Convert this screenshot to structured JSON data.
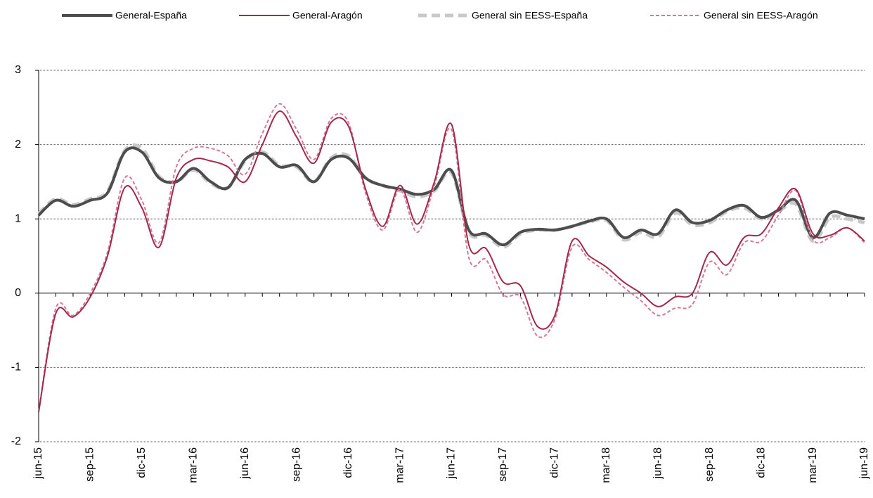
{
  "chart_data": {
    "type": "line",
    "categories": [
      "jun-15",
      null,
      null,
      "sep-15",
      null,
      null,
      "dic-15",
      null,
      null,
      "mar-16",
      null,
      null,
      "jun-16",
      null,
      null,
      "sep-16",
      null,
      null,
      "dic-16",
      null,
      null,
      "mar-17",
      null,
      null,
      "jun-17",
      null,
      null,
      "sep-17",
      null,
      null,
      "dic-17",
      null,
      null,
      "mar-18",
      null,
      null,
      "jun-18",
      null,
      null,
      "sep-18",
      null,
      null,
      "dic-18",
      null,
      null,
      "mar-19",
      null,
      null,
      "jun-19"
    ],
    "series": [
      {
        "name": "General-España",
        "color": "#4d4d4d",
        "linestyle": "solid",
        "linewidth": 4,
        "values": [
          1.05,
          1.25,
          1.17,
          1.25,
          1.35,
          1.9,
          1.9,
          1.55,
          1.5,
          1.68,
          1.5,
          1.42,
          1.8,
          1.88,
          1.7,
          1.72,
          1.5,
          1.8,
          1.82,
          1.55,
          1.45,
          1.4,
          1.33,
          1.4,
          1.65,
          0.85,
          0.8,
          0.65,
          0.82,
          0.86,
          0.85,
          0.9,
          0.97,
          1.0,
          0.75,
          0.85,
          0.8,
          1.12,
          0.95,
          0.98,
          1.12,
          1.18,
          1.02,
          1.12,
          1.25,
          0.75,
          1.08,
          1.05,
          1.0
        ]
      },
      {
        "name": "General-Aragón",
        "color": "#a3284a",
        "linestyle": "solid",
        "linewidth": 2,
        "values": [
          -1.6,
          -0.27,
          -0.32,
          -0.05,
          0.5,
          1.42,
          1.15,
          0.62,
          1.55,
          1.8,
          1.78,
          1.7,
          1.5,
          2.0,
          2.45,
          2.1,
          1.75,
          2.3,
          2.25,
          1.4,
          0.9,
          1.45,
          0.93,
          1.5,
          2.27,
          0.65,
          0.6,
          0.15,
          0.1,
          -0.45,
          -0.3,
          0.7,
          0.5,
          0.35,
          0.15,
          0.0,
          -0.18,
          -0.05,
          0.0,
          0.55,
          0.38,
          0.75,
          0.8,
          1.15,
          1.4,
          0.8,
          0.78,
          0.88,
          0.7
        ]
      },
      {
        "name": "General sin EESS-España",
        "color": "#c8c8c8",
        "linestyle": "dashed",
        "linewidth": 5,
        "values": [
          1.07,
          1.27,
          1.19,
          1.27,
          1.37,
          1.92,
          1.95,
          1.57,
          1.5,
          1.66,
          1.48,
          1.42,
          1.78,
          1.9,
          1.72,
          1.7,
          1.5,
          1.82,
          1.85,
          1.55,
          1.45,
          1.38,
          1.3,
          1.38,
          1.62,
          0.82,
          0.78,
          0.62,
          0.8,
          0.85,
          0.85,
          0.9,
          0.96,
          0.98,
          0.72,
          0.82,
          0.76,
          1.08,
          0.92,
          0.95,
          1.1,
          1.15,
          1.0,
          1.1,
          1.2,
          0.7,
          1.02,
          1.0,
          0.95
        ]
      },
      {
        "name": "General sin EESS-Aragón",
        "color": "#d47a93",
        "linestyle": "dashed",
        "linewidth": 2,
        "values": [
          -1.6,
          -0.2,
          -0.3,
          0.0,
          0.55,
          1.55,
          1.25,
          0.68,
          1.7,
          1.95,
          1.95,
          1.85,
          1.6,
          2.15,
          2.55,
          2.2,
          1.8,
          2.35,
          2.3,
          1.35,
          0.85,
          1.4,
          0.82,
          1.45,
          2.2,
          0.48,
          0.45,
          -0.02,
          -0.05,
          -0.58,
          -0.35,
          0.62,
          0.45,
          0.28,
          0.08,
          -0.1,
          -0.3,
          -0.2,
          -0.15,
          0.42,
          0.25,
          0.68,
          0.7,
          1.05,
          1.38,
          0.72,
          0.75,
          0.88,
          0.68
        ]
      }
    ],
    "ylim": [
      -2,
      3
    ],
    "yticks": [
      -2,
      -1,
      0,
      1,
      2,
      3
    ],
    "grid": true,
    "legend": "top"
  }
}
